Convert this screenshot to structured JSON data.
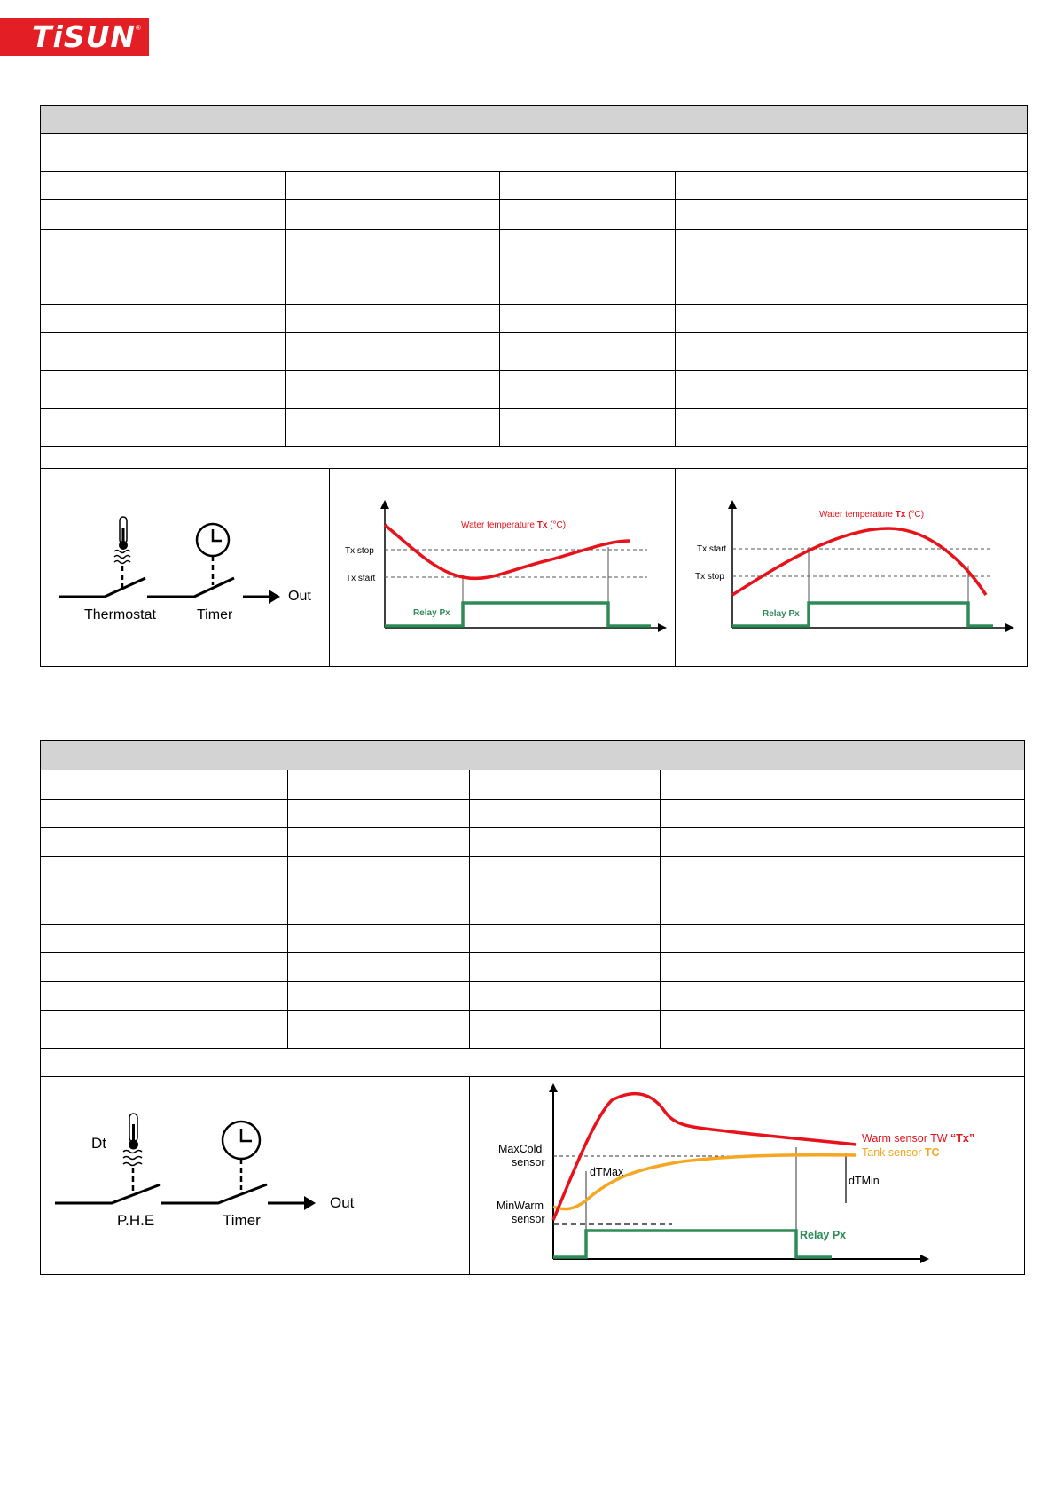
{
  "header": {
    "brand": "TiSUN",
    "registered_mark": "®"
  },
  "colors": {
    "brand_red": "#e31e24",
    "curve_red": "#e8121b",
    "relay_green": "#2e8b57",
    "tank_orange": "#f5a623",
    "header_gray": "#d3d3d3"
  },
  "section1": {
    "schematic": {
      "label_thermostat": "Thermostat",
      "label_timer": "Timer",
      "label_out": "Out",
      "icons": [
        "thermometer-icon",
        "clock-icon",
        "arrow-right-icon"
      ]
    },
    "chart_heating": {
      "curve_label_prefix": "Water temperature ",
      "curve_label_var": "Tx",
      "curve_label_unit": " (°C)",
      "tx_stop": "Tx stop",
      "tx_start": "Tx start",
      "relay": "Relay Px"
    },
    "chart_cooling": {
      "curve_label_prefix": "Water temperature ",
      "curve_label_var": "Tx",
      "curve_label_unit": " (°C)",
      "tx_start": "Tx start",
      "tx_stop": "Tx stop",
      "relay": "Relay Px"
    }
  },
  "section2": {
    "schematic": {
      "label_dt": "Dt",
      "label_phe": "P.H.E",
      "label_timer": "Timer",
      "label_out": "Out",
      "icons": [
        "thermometer-icon",
        "clock-icon",
        "arrow-right-icon"
      ]
    },
    "chart_dt": {
      "maxcold_1": "MaxCold",
      "maxcold_2": "sensor",
      "minwarm_1": "MinWarm",
      "minwarm_2": "sensor",
      "dtmax": "dTMax",
      "dtmin": "dTMin",
      "warm_prefix": "Warm sensor TW ",
      "warm_var": "“Tx”",
      "tank_prefix": "Tank sensor ",
      "tank_var": "TC",
      "relay": "Relay Px"
    }
  }
}
